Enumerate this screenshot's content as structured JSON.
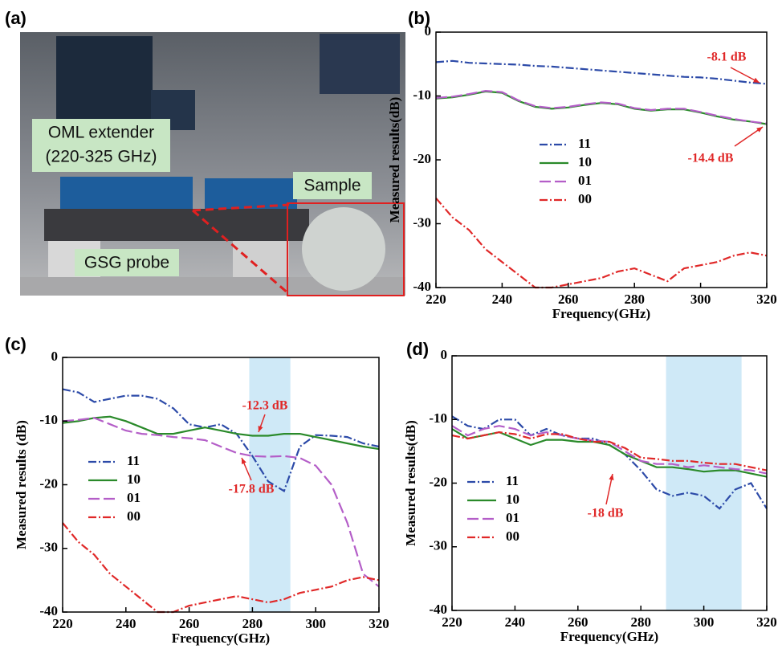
{
  "photo": {
    "panel_label": "(a)",
    "labels": [
      "OML extender",
      "(220-325 GHz)",
      "Sample",
      "GSG probe"
    ]
  },
  "chart_data": [
    {
      "type": "line",
      "panel_label": "(b)",
      "xlabel": "Frequency(GHz)",
      "ylabel": "Measured results(dB)",
      "x": [
        220,
        225,
        230,
        235,
        240,
        245,
        250,
        255,
        260,
        265,
        270,
        275,
        280,
        285,
        290,
        295,
        300,
        305,
        310,
        315,
        320
      ],
      "xlim": [
        220,
        320
      ],
      "xticks": [
        220,
        240,
        260,
        280,
        300,
        320
      ],
      "ylim": [
        -40,
        0
      ],
      "yticks": [
        0,
        -10,
        -20,
        -30,
        -40
      ],
      "series": [
        {
          "name": "11",
          "color": "#2c4aa8",
          "dash": "dashdot",
          "values": [
            -4.7,
            -4.5,
            -4.8,
            -4.9,
            -5,
            -5.1,
            -5.3,
            -5.4,
            -5.6,
            -5.8,
            -6,
            -6.2,
            -6.4,
            -6.6,
            -6.8,
            -7,
            -7.1,
            -7.3,
            -7.6,
            -7.9,
            -8.1
          ]
        },
        {
          "name": "10",
          "color": "#2a8a2a",
          "dash": "solid",
          "values": [
            -10.4,
            -10.2,
            -9.8,
            -9.3,
            -9.5,
            -10.8,
            -11.7,
            -12,
            -11.8,
            -11.4,
            -11.1,
            -11.3,
            -12,
            -12.3,
            -12.1,
            -12.1,
            -12.6,
            -13.2,
            -13.7,
            -14,
            -14.4
          ]
        },
        {
          "name": "01",
          "color": "#b45ec8",
          "dash": "dashed",
          "values": [
            -10.3,
            -10.1,
            -9.7,
            -9.2,
            -9.4,
            -10.7,
            -11.6,
            -11.9,
            -11.7,
            -11.3,
            -11,
            -11.2,
            -11.9,
            -12.2,
            -12,
            -12,
            -12.5,
            -13.1,
            -13.6,
            -14,
            -14.3
          ]
        },
        {
          "name": "00",
          "color": "#e02828",
          "dash": "dashdot",
          "values": [
            -26,
            -29,
            -31,
            -34,
            -36,
            -38,
            -40,
            -40,
            -39.5,
            -39,
            -38.5,
            -37.5,
            -37,
            -38,
            -39,
            -37,
            -36.5,
            -36,
            -35,
            -34.5,
            -35
          ]
        }
      ],
      "annotations": [
        "-8.1 dB",
        "-14.4 dB"
      ]
    },
    {
      "type": "line",
      "panel_label": "(c)",
      "xlabel": "Frequency(GHz)",
      "ylabel": "Measured results (dB)",
      "x": [
        220,
        225,
        230,
        235,
        240,
        245,
        250,
        255,
        260,
        265,
        270,
        275,
        280,
        285,
        290,
        295,
        300,
        305,
        310,
        315,
        320
      ],
      "xlim": [
        220,
        320
      ],
      "xticks": [
        220,
        240,
        260,
        280,
        300,
        320
      ],
      "ylim": [
        -40,
        0
      ],
      "yticks": [
        0,
        -10,
        -20,
        -30,
        -40
      ],
      "highlight": [
        279,
        292
      ],
      "series": [
        {
          "name": "11",
          "color": "#2c4aa8",
          "dash": "dashdot",
          "values": [
            -5,
            -5.5,
            -7,
            -6.5,
            -6,
            -6,
            -6.5,
            -8,
            -10.5,
            -11,
            -10.5,
            -12,
            -15.5,
            -19.5,
            -21,
            -14,
            -12.2,
            -12.3,
            -12.5,
            -13.5,
            -14
          ]
        },
        {
          "name": "10",
          "color": "#2a8a2a",
          "dash": "solid",
          "values": [
            -10.3,
            -10,
            -9.5,
            -9.3,
            -10,
            -11,
            -12,
            -12,
            -11.5,
            -11,
            -11.5,
            -12,
            -12.3,
            -12.3,
            -12,
            -12,
            -12.5,
            -13,
            -13.5,
            -14,
            -14.4
          ]
        },
        {
          "name": "01",
          "color": "#b45ec8",
          "dash": "dashed",
          "values": [
            -10,
            -9.8,
            -9.5,
            -10.5,
            -11.5,
            -12,
            -12.2,
            -12.5,
            -12.7,
            -13,
            -14,
            -15,
            -15.5,
            -15.6,
            -15.5,
            -15.8,
            -17,
            -20,
            -26,
            -34,
            -36
          ]
        },
        {
          "name": "00",
          "color": "#e02828",
          "dash": "dashdot",
          "values": [
            -26,
            -29,
            -31,
            -34,
            -36,
            -38,
            -40,
            -40,
            -39,
            -38.5,
            -38,
            -37.5,
            -38,
            -38.5,
            -38,
            -37,
            -36.5,
            -36,
            -35,
            -34.5,
            -35
          ]
        }
      ],
      "annotations": [
        "-12.3 dB",
        "-17.8 dB"
      ]
    },
    {
      "type": "line",
      "panel_label": "(d)",
      "xlabel": "Frequency(GHz)",
      "ylabel": "Measured results(dB)",
      "x": [
        220,
        225,
        230,
        235,
        240,
        245,
        250,
        255,
        260,
        265,
        270,
        275,
        280,
        285,
        290,
        295,
        300,
        305,
        310,
        315,
        320
      ],
      "xlim": [
        220,
        320
      ],
      "xticks": [
        220,
        240,
        260,
        280,
        300,
        320
      ],
      "ylim": [
        -40,
        0
      ],
      "yticks": [
        0,
        -10,
        -20,
        -30,
        -40
      ],
      "highlight": [
        288,
        312
      ],
      "series": [
        {
          "name": "11",
          "color": "#2c4aa8",
          "dash": "dashdot",
          "values": [
            -9.5,
            -11,
            -11.5,
            -10,
            -10,
            -12.5,
            -11.5,
            -12.5,
            -13,
            -13,
            -14,
            -15.5,
            -18,
            -21,
            -22,
            -21.5,
            -22,
            -24,
            -21,
            -20,
            -24
          ]
        },
        {
          "name": "10",
          "color": "#2a8a2a",
          "dash": "solid",
          "values": [
            -11.5,
            -13,
            -12.5,
            -12,
            -13,
            -14,
            -13.2,
            -13.2,
            -13.5,
            -13.5,
            -14,
            -15.5,
            -16.5,
            -17.5,
            -17.5,
            -17.8,
            -18.2,
            -18,
            -18,
            -18.5,
            -19
          ]
        },
        {
          "name": "01",
          "color": "#b45ec8",
          "dash": "dashed",
          "values": [
            -11,
            -12.5,
            -11.5,
            -11,
            -11.5,
            -12.5,
            -12,
            -12.5,
            -13,
            -13.3,
            -13.5,
            -15,
            -16.5,
            -17,
            -17,
            -17.5,
            -17.2,
            -17.5,
            -17.8,
            -18,
            -18.5
          ]
        },
        {
          "name": "00",
          "color": "#e02828",
          "dash": "dashdot",
          "values": [
            -12.5,
            -13,
            -12.5,
            -12,
            -12.3,
            -13,
            -12.3,
            -12.3,
            -13,
            -13.5,
            -13.5,
            -14.5,
            -16,
            -16.2,
            -16.5,
            -16.5,
            -16.8,
            -17,
            -17,
            -17.5,
            -18
          ]
        }
      ],
      "annotations": [
        "-18 dB"
      ]
    }
  ]
}
